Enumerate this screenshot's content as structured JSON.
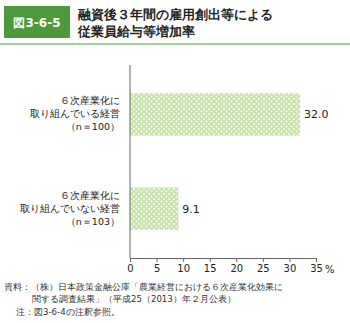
{
  "chart_data": {
    "type": "bar",
    "orientation": "horizontal",
    "figure_number": "図3-6-5",
    "title": "融資後３年間の雇用創出等による\n従業員給与等増加率",
    "categories": [
      "６次産業化に\n取り組んでいる経営\n（n＝100）",
      "６次産業化に\n取り組んでいない経営\n（n＝103）"
    ],
    "values": [
      32.0,
      9.1
    ],
    "value_labels": [
      "32.0",
      "9.1"
    ],
    "data_labels": true,
    "color": "#c9e4ab",
    "xlabel": "%",
    "xlim": [
      0,
      35
    ],
    "xticks": [
      0,
      5,
      10,
      15,
      20,
      25,
      30,
      35
    ],
    "grid": false,
    "source": "資料：（株）日本政策金融公庫「農業経営における６次産業化効果に\n関する調査結果」（平成25（2013）年２月公表）",
    "note": "注：図3-6-4の注釈参照。"
  }
}
